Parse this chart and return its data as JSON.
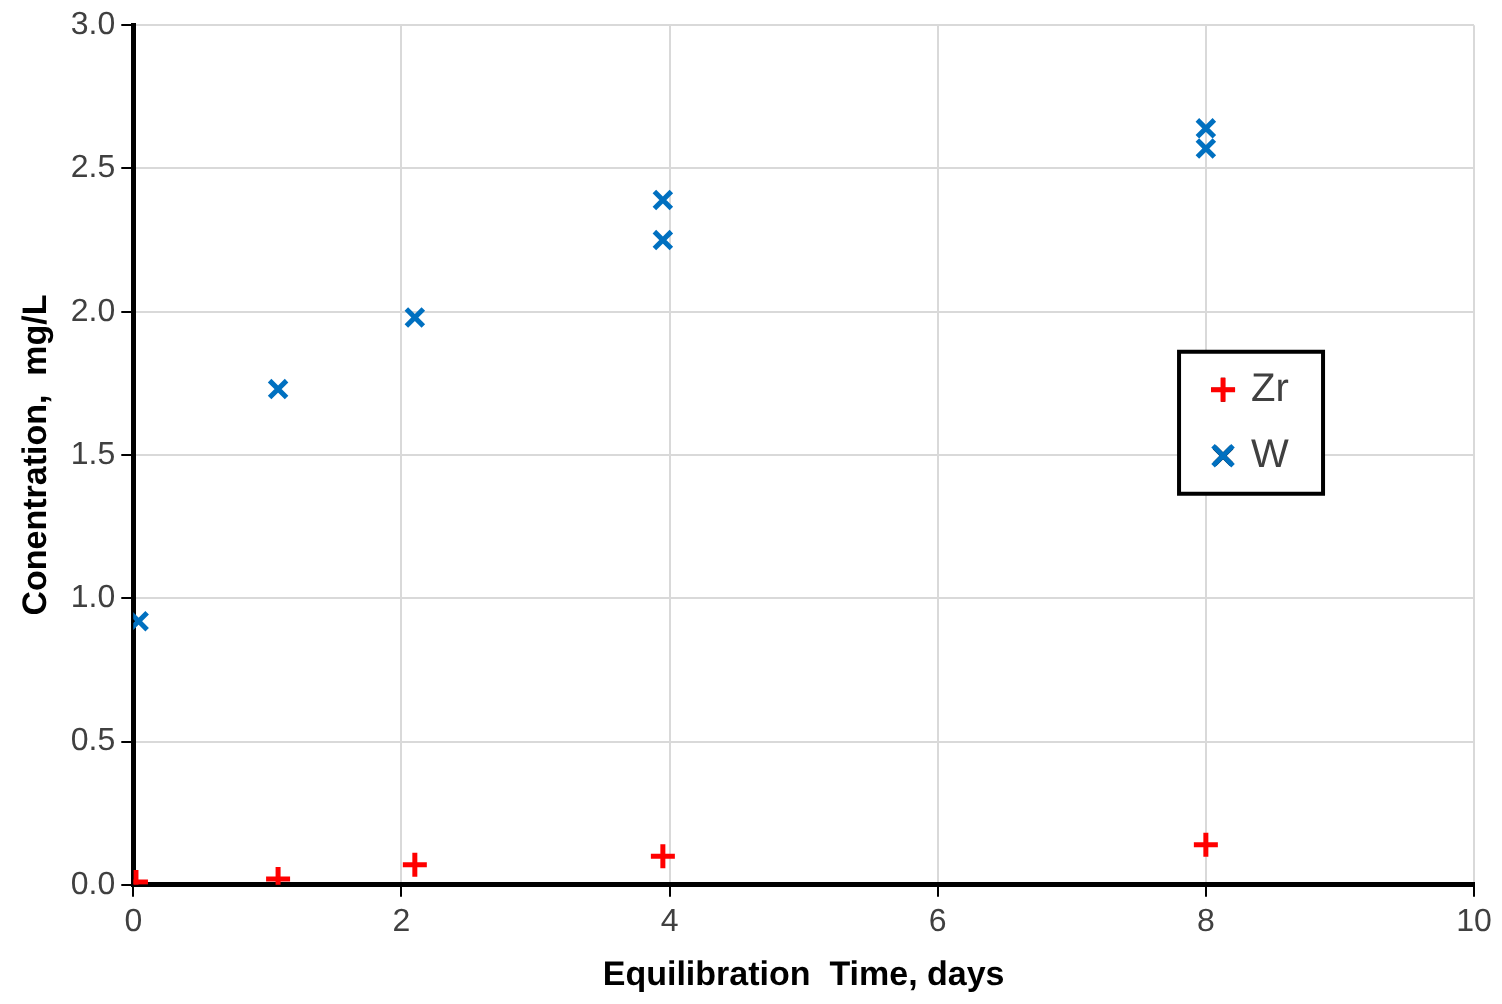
{
  "chart_data": {
    "type": "scatter",
    "xlabel": "Equilibration  Time, days",
    "ylabel": "Conentration,  mg/L",
    "xlim": [
      0,
      10
    ],
    "xticks": [
      0,
      2,
      4,
      6,
      8,
      10
    ],
    "ylim": [
      0,
      3
    ],
    "yticks": [
      {
        "value": 0,
        "label": "0.0"
      },
      {
        "value": 0.5,
        "label": "0.5"
      },
      {
        "value": 1,
        "label": "1.0"
      },
      {
        "value": 1.5,
        "label": "1.5"
      },
      {
        "value": 2,
        "label": "2.0"
      },
      {
        "value": 2.5,
        "label": "2.5"
      },
      {
        "value": 3,
        "label": "3.0"
      }
    ],
    "grid": true,
    "legend": "right",
    "series": [
      {
        "name": "Zr",
        "color": "#ff0000",
        "marker": "cross",
        "x": [
          0.02,
          1.08,
          2.1,
          3.95,
          8
        ],
        "values": [
          0.01,
          0.02,
          0.07,
          0.1,
          0.14
        ]
      },
      {
        "name": "W",
        "color": "#0070c0",
        "marker": "x",
        "x": [
          0.04,
          1.08,
          2.1,
          3.95,
          3.95,
          8,
          8
        ],
        "values": [
          0.92,
          1.73,
          1.98,
          2.39,
          2.25,
          2.64,
          2.57
        ]
      }
    ]
  }
}
